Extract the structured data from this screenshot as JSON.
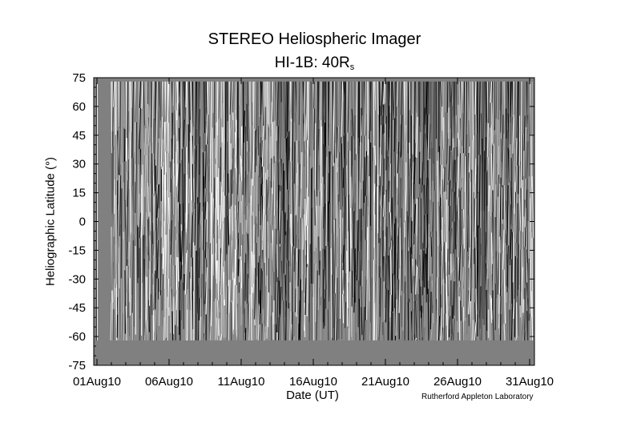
{
  "page": {
    "title": "STEREO Heliospheric Imager",
    "subtitle_main": "HI-1B: 40R",
    "subtitle_sub": "s",
    "credit": "Rutherford Appleton Laboratory"
  },
  "chart_data": {
    "type": "heatmap",
    "title": "STEREO Heliospheric Imager",
    "subtitle": "HI-1B: 40Rs",
    "xlabel": "Date (UT)",
    "ylabel": "Heliographic Latitude (°)",
    "x_ticks": [
      "01Aug10",
      "06Aug10",
      "11Aug10",
      "16Aug10",
      "21Aug10",
      "26Aug10",
      "31Aug10"
    ],
    "x_range_days": [
      0,
      30
    ],
    "ylim": [
      -75,
      75
    ],
    "y_ticks": [
      75,
      60,
      45,
      30,
      15,
      0,
      -15,
      -30,
      -45,
      -60,
      -75
    ],
    "data_lat_range": [
      -62,
      73
    ],
    "colors": {
      "background_fill": "#808080",
      "positive": "#ffffff",
      "negative": "#000000"
    },
    "description": "Time-elongation style difference map (J-map) of latitude vs date; grey where no data."
  }
}
